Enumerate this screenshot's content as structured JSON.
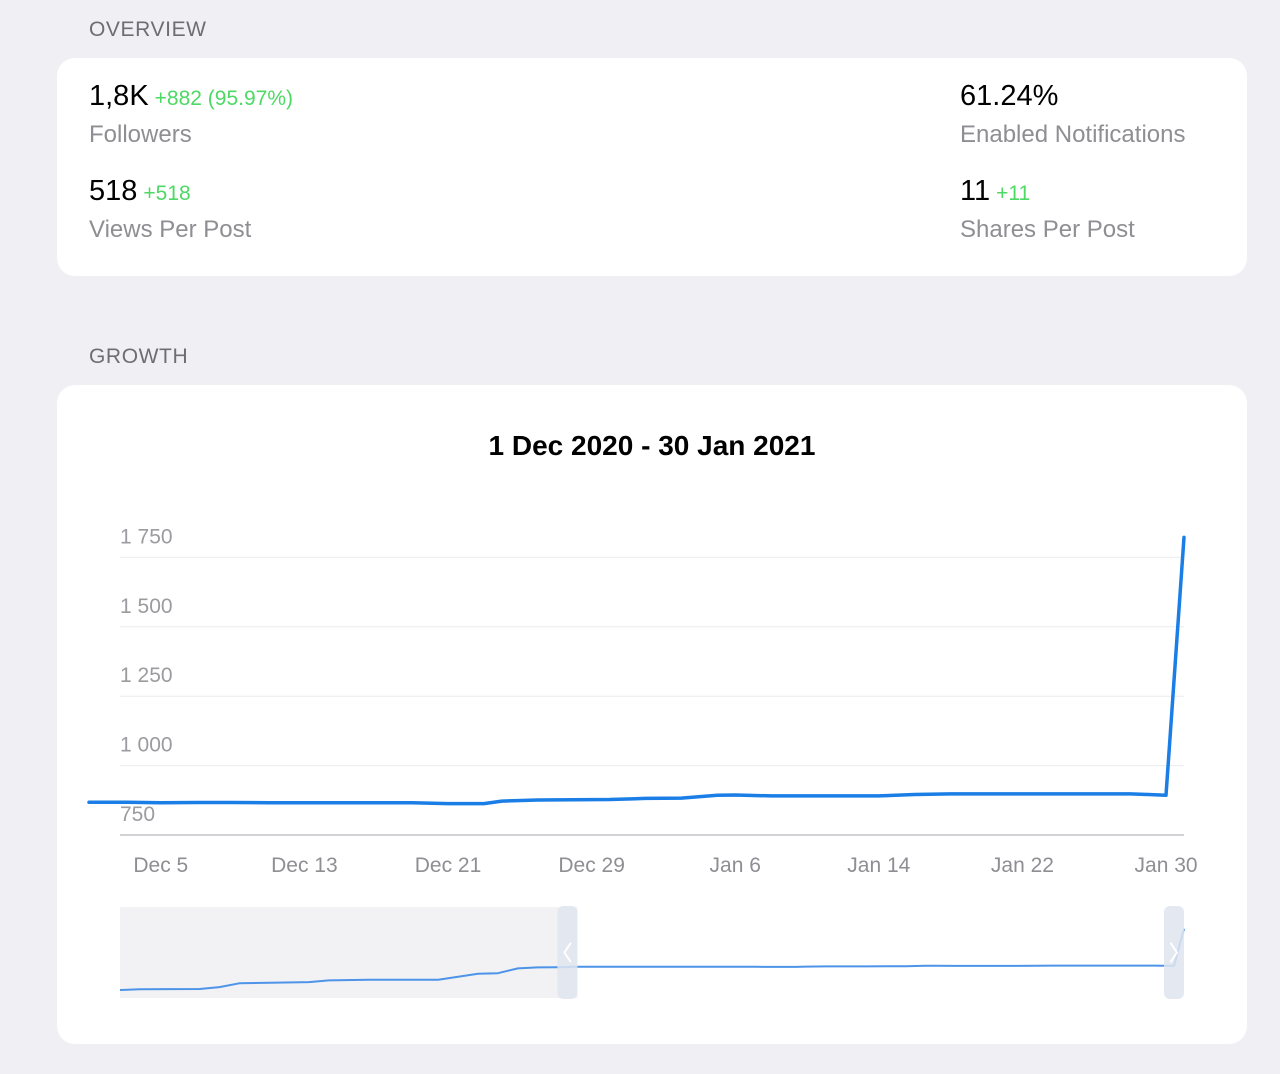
{
  "overview": {
    "header": "OVERVIEW",
    "followers": {
      "value": "1,8K",
      "delta": "+882 (95.97%)",
      "label": "Followers"
    },
    "views_per_post": {
      "value": "518",
      "delta": "+518",
      "label": "Views Per Post"
    },
    "enabled_notifications": {
      "value": "61.24%",
      "label": "Enabled Notifications"
    },
    "shares_per_post": {
      "value": "11",
      "delta": "+11",
      "label": "Shares Per Post"
    }
  },
  "growth": {
    "header": "GROWTH",
    "chart_title": "1 Dec 2020 - 30 Jan 2021"
  },
  "colors": {
    "background": "#efeff4",
    "card": "#ffffff",
    "positive_delta": "#4cd964",
    "series_line": "#1a7ee6"
  },
  "chart_data": {
    "type": "line",
    "title": "1 Dec 2020 - 30 Jan 2021",
    "xlabel": "",
    "ylabel": "",
    "y_ticks": [
      750,
      1000,
      1250,
      1500,
      1750
    ],
    "y_tick_labels": [
      "750",
      "1 000",
      "1 250",
      "1 500",
      "1 750"
    ],
    "ylim": [
      750,
      1820
    ],
    "x_range": [
      "2020-12-01",
      "2021-01-31"
    ],
    "x_ticks": [
      "Dec 5",
      "Dec 13",
      "Dec 21",
      "Dec 29",
      "Jan 6",
      "Jan 14",
      "Jan 22",
      "Jan 30"
    ],
    "x_tick_dates": [
      "2020-12-05",
      "2020-12-13",
      "2020-12-21",
      "2020-12-29",
      "2021-01-06",
      "2021-01-14",
      "2021-01-22",
      "2021-01-30"
    ],
    "grid": true,
    "series": [
      {
        "color": "#1a7ee6",
        "x": [
          "2020-12-01",
          "2020-12-03",
          "2020-12-05",
          "2020-12-07",
          "2020-12-09",
          "2020-12-11",
          "2020-12-13",
          "2020-12-15",
          "2020-12-17",
          "2020-12-19",
          "2020-12-21",
          "2020-12-23",
          "2020-12-24",
          "2020-12-26",
          "2020-12-28",
          "2020-12-30",
          "2021-01-01",
          "2021-01-03",
          "2021-01-05",
          "2021-01-06",
          "2021-01-08",
          "2021-01-10",
          "2021-01-12",
          "2021-01-14",
          "2021-01-16",
          "2021-01-18",
          "2021-01-20",
          "2021-01-22",
          "2021-01-24",
          "2021-01-26",
          "2021-01-28",
          "2021-01-29",
          "2021-01-30",
          "2021-01-31"
        ],
        "y": [
          868,
          868,
          866,
          867,
          867,
          866,
          866,
          866,
          866,
          866,
          863,
          863,
          872,
          876,
          877,
          878,
          882,
          883,
          893,
          894,
          891,
          891,
          891,
          891,
          896,
          898,
          898,
          898,
          898,
          898,
          898,
          896,
          893,
          1822
        ]
      }
    ],
    "navigator": {
      "x_range": [
        "2020-10-16",
        "2021-01-31"
      ],
      "selected_range": [
        "2020-12-01",
        "2021-01-31"
      ]
    }
  }
}
